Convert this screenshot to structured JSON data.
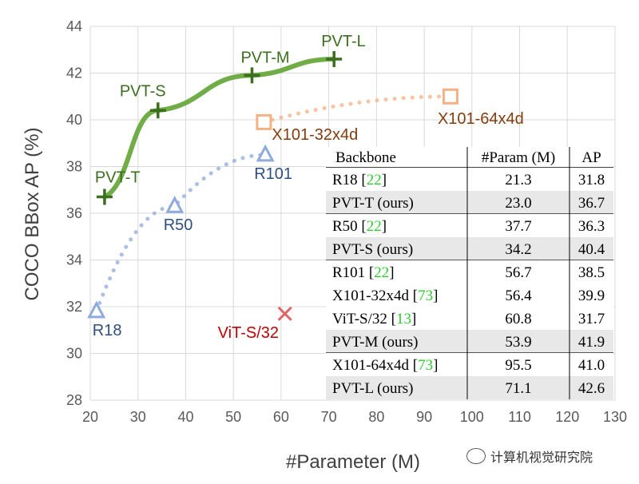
{
  "chart_data": {
    "type": "scatter",
    "xlabel": "#Parameter (M)",
    "ylabel": "COCO BBox AP (%)",
    "xlim": [
      20,
      130
    ],
    "ylim": [
      28,
      44
    ],
    "x_ticks": [
      20,
      30,
      40,
      50,
      60,
      70,
      80,
      90,
      100,
      110,
      120,
      130
    ],
    "y_ticks": [
      28,
      30,
      32,
      34,
      36,
      38,
      40,
      42,
      44
    ],
    "grid": true,
    "series": [
      {
        "color": "#70ad47",
        "label_color": "#3b6e1f",
        "marker": "plus",
        "line": "solid",
        "points": [
          {
            "label": "PVT-T",
            "x": 23.0,
            "y": 36.7
          },
          {
            "label": "PVT-S",
            "x": 34.2,
            "y": 40.4
          },
          {
            "label": "PVT-M",
            "x": 53.9,
            "y": 41.9
          },
          {
            "label": "PVT-L",
            "x": 71.1,
            "y": 42.6
          }
        ]
      },
      {
        "color": "#8faadc",
        "label_color": "#2f4f7f",
        "marker": "triangle",
        "line": "dotted",
        "points": [
          {
            "label": "R18",
            "x": 21.3,
            "y": 31.8
          },
          {
            "label": "R50",
            "x": 37.7,
            "y": 36.3
          },
          {
            "label": "R101",
            "x": 56.7,
            "y": 38.5
          }
        ]
      },
      {
        "color": "#f4b183",
        "label_color": "#843c0c",
        "marker": "square",
        "line": "dotted",
        "points": [
          {
            "label": "X101-32x4d",
            "x": 56.4,
            "y": 39.9
          },
          {
            "label": "X101-64x4d",
            "x": 95.5,
            "y": 41.0
          }
        ]
      },
      {
        "color": "#e06666",
        "label_color": "#c00000",
        "marker": "x",
        "line": "none",
        "points": [
          {
            "label": "ViT-S/32",
            "x": 60.8,
            "y": 31.7
          }
        ]
      }
    ],
    "table": {
      "headers": [
        "Backbone",
        "#Param (M)",
        "AP"
      ],
      "rows": [
        {
          "name": "R18 [",
          "cite": "22",
          "tail": "]",
          "param": "21.3",
          "ap": "31.8",
          "shaded": false
        },
        {
          "name": "PVT-T (ours)",
          "cite": "",
          "tail": "",
          "param": "23.0",
          "ap": "36.7",
          "shaded": true
        },
        {
          "name": "R50 [",
          "cite": "22",
          "tail": "]",
          "param": "37.7",
          "ap": "36.3",
          "shaded": false
        },
        {
          "name": "PVT-S (ours)",
          "cite": "",
          "tail": "",
          "param": "34.2",
          "ap": "40.4",
          "shaded": true
        },
        {
          "name": "R101 [",
          "cite": "22",
          "tail": "]",
          "param": "56.7",
          "ap": "38.5",
          "shaded": false
        },
        {
          "name": "X101-32x4d [",
          "cite": "73",
          "tail": "]",
          "param": "56.4",
          "ap": "39.9",
          "shaded": false
        },
        {
          "name": "ViT-S/32 [",
          "cite": "13",
          "tail": "]",
          "param": "60.8",
          "ap": "31.7",
          "shaded": false
        },
        {
          "name": "PVT-M (ours)",
          "cite": "",
          "tail": "",
          "param": "53.9",
          "ap": "41.9",
          "shaded": true
        },
        {
          "name": "X101-64x4d [",
          "cite": "73",
          "tail": "]",
          "param": "95.5",
          "ap": "41.0",
          "shaded": false
        },
        {
          "name": "PVT-L (ours)",
          "cite": "",
          "tail": "",
          "param": "71.1",
          "ap": "42.6",
          "shaded": true
        }
      ]
    }
  },
  "watermark": {
    "text": "计算机视觉研究院",
    "icon": "wechat-icon"
  }
}
